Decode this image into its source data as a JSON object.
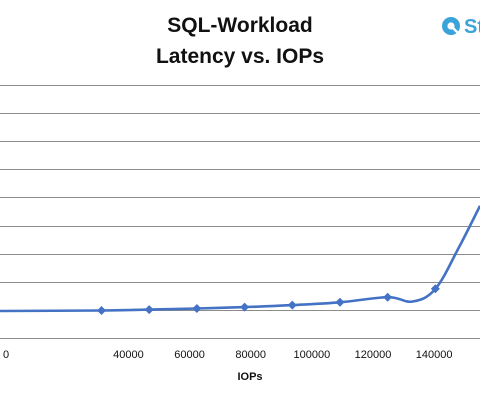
{
  "colors": {
    "series": "#4472c4",
    "grid": "#8c8c8c",
    "text": "#111111",
    "logo": "#3aa3d9"
  },
  "logo": {
    "text": "St",
    "icon": "storagereview-logo-icon"
  },
  "chart_data": {
    "type": "line",
    "title": [
      "SQL-Workload",
      "Latency vs. IOPs"
    ],
    "xlabel": "IOPs",
    "ylabel": "",
    "x_ticks": [
      "0",
      "40000",
      "60000",
      "80000",
      "100000",
      "120000",
      "140000"
    ],
    "xlim": [
      -2000,
      155000
    ],
    "ylim": [
      0,
      9
    ],
    "y_gridlines": [
      1,
      2,
      3,
      4,
      5,
      6,
      7,
      8,
      9
    ],
    "grid": true,
    "legend": "none",
    "series": [
      {
        "points": [
          [
            31200,
            0.98
          ],
          [
            46800,
            1.01
          ],
          [
            62400,
            1.05
          ],
          [
            78000,
            1.1
          ],
          [
            93600,
            1.17
          ],
          [
            109200,
            1.27
          ],
          [
            124800,
            1.45
          ],
          [
            140400,
            1.75
          ]
        ]
      }
    ],
    "curve_tail": [
      [
        -2000,
        0.96
      ],
      [
        133000,
        1.3
      ],
      [
        148000,
        3.2
      ],
      [
        155000,
        4.7
      ]
    ]
  }
}
